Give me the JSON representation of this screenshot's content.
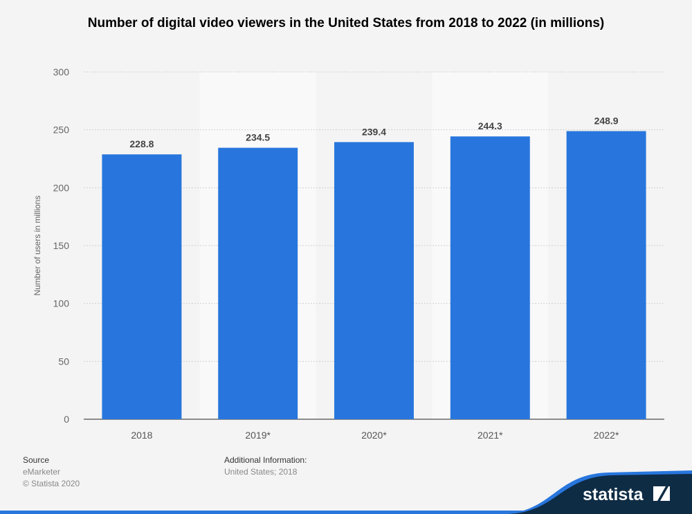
{
  "chart_data": {
    "type": "bar",
    "title": "Number of digital video viewers in the United States from 2018 to 2022 (in millions)",
    "xlabel": "",
    "ylabel": "Number of users in millions",
    "categories": [
      "2018",
      "2019*",
      "2020*",
      "2021*",
      "2022*"
    ],
    "values": [
      228.8,
      234.5,
      239.4,
      244.3,
      248.9
    ],
    "value_labels": [
      "228.8",
      "234.5",
      "239.4",
      "244.3",
      "248.9"
    ],
    "ylim": [
      0,
      300
    ],
    "yticks": [
      0,
      50,
      100,
      150,
      200,
      250,
      300
    ],
    "grid": true,
    "bar_color": "#2876dd"
  },
  "footer": {
    "source_label": "Source",
    "source": "eMarketer",
    "copyright": "© Statista 2020",
    "additional_label": "Additional Information:",
    "additional": "United States; 2018"
  },
  "logo": {
    "text": "statista",
    "color": "#0f2c45",
    "accent": "#2876dd"
  }
}
